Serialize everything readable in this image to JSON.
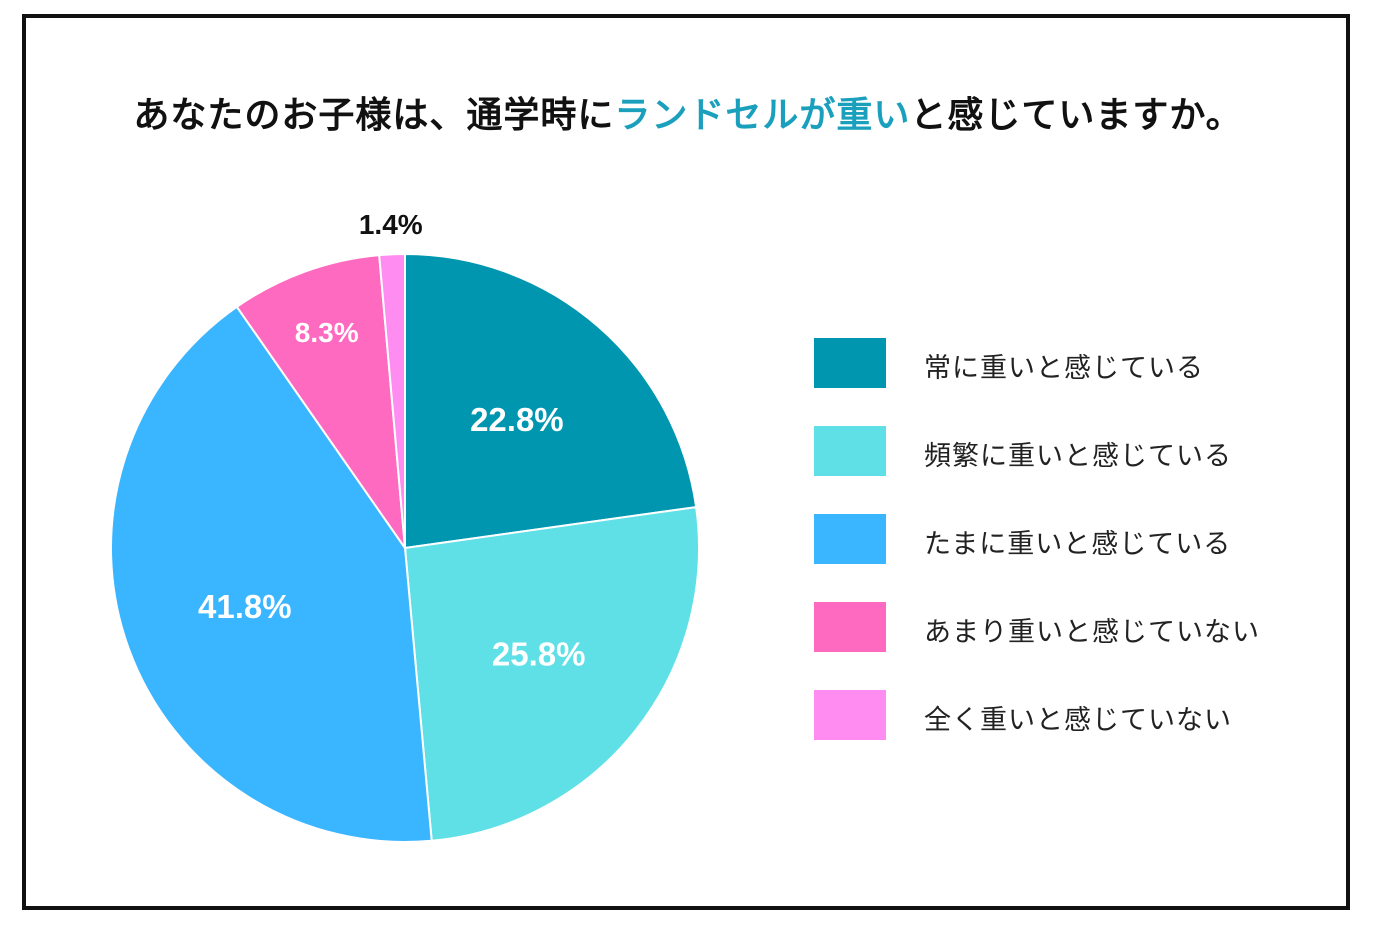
{
  "title": {
    "part1": "あなたのお子様は、通学時に",
    "highlight": "ランドセルが重い",
    "part2": "と感じていますか。",
    "highlight_color": "#1aa0bd"
  },
  "chart_data": {
    "type": "pie",
    "title": "あなたのお子様は、通学時にランドセルが重いと感じていますか。",
    "slices": [
      {
        "label": "常に重いと感じている",
        "value": 22.8,
        "display": "22.8%",
        "color": "#0096b0"
      },
      {
        "label": "頻繁に重いと感じている",
        "value": 25.8,
        "display": "25.8%",
        "color": "#5ee0e6"
      },
      {
        "label": "たまに重いと感じている",
        "value": 41.8,
        "display": "41.8%",
        "color": "#3ab5ff"
      },
      {
        "label": "あまり重いと感じていない",
        "value": 8.3,
        "display": "8.3%",
        "color": "#ff6ac1"
      },
      {
        "label": "全く重いと感じていない",
        "value": 1.4,
        "display": "1.4%",
        "color": "#ff8cf0"
      }
    ],
    "legend_position": "right"
  }
}
